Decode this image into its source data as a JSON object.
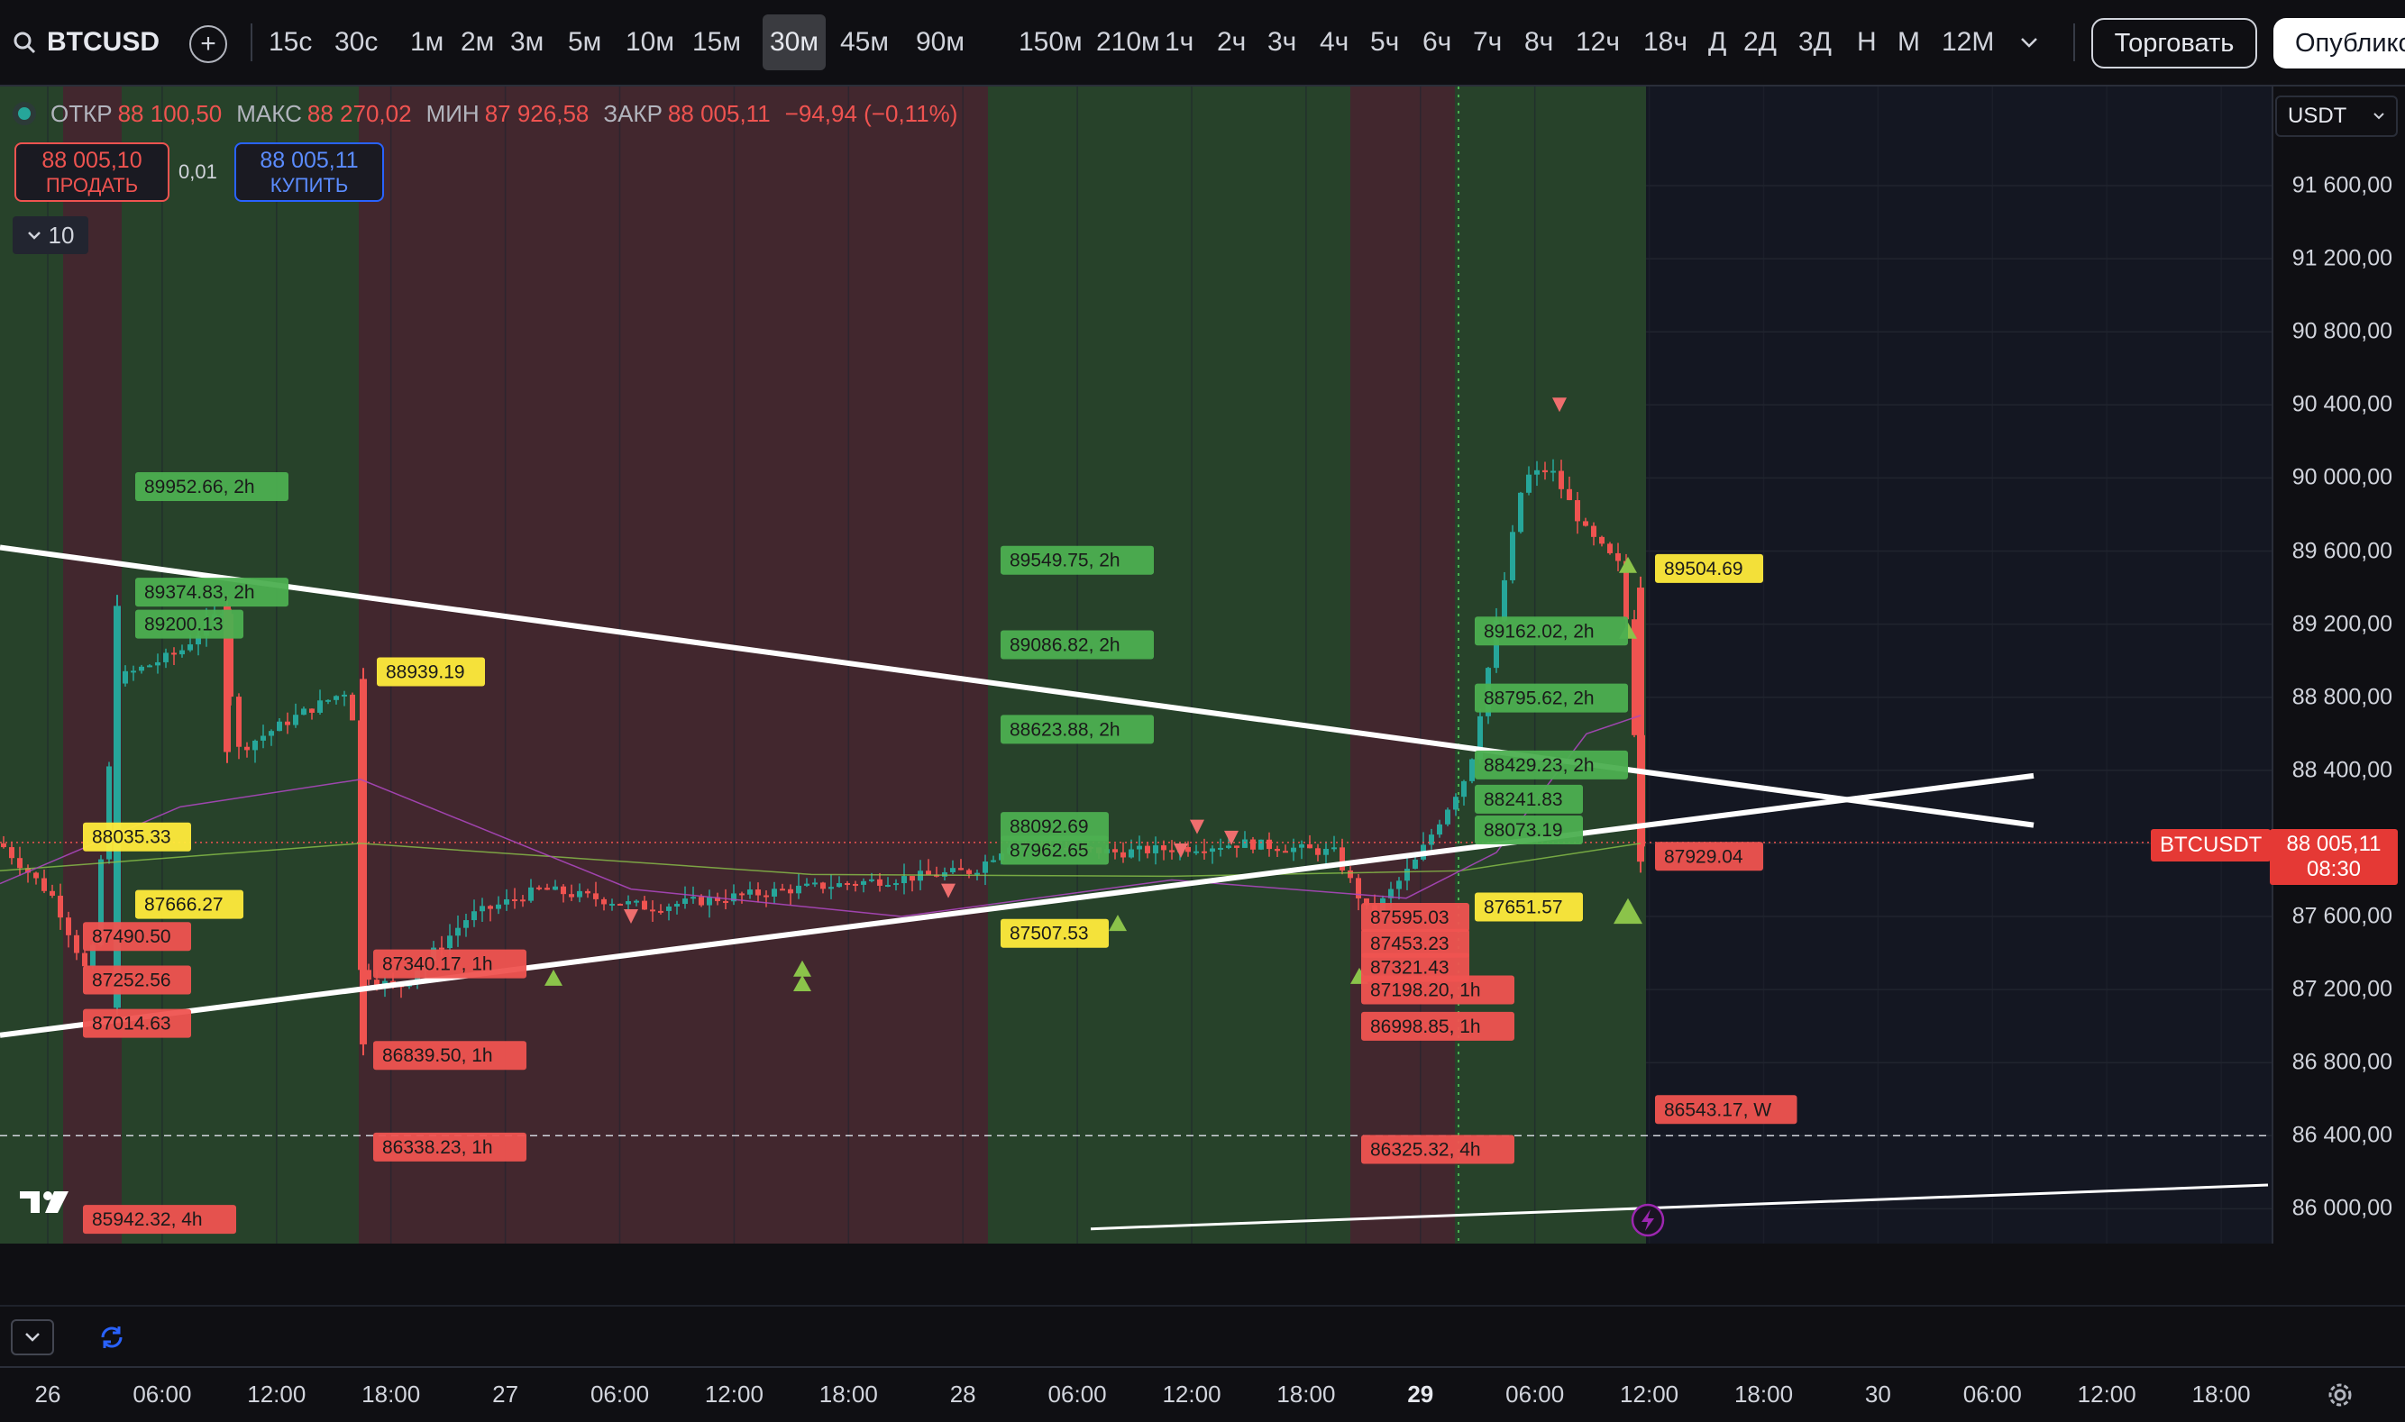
{
  "toolbar": {
    "symbol": "BTCUSD",
    "intervals": [
      "15с",
      "30с",
      "1м",
      "2м",
      "3м",
      "5м",
      "10м",
      "15м",
      "30м",
      "45м",
      "90м",
      "150м",
      "210м",
      "1ч",
      "2ч",
      "3ч",
      "4ч",
      "5ч",
      "6ч",
      "7ч",
      "8ч",
      "12ч",
      "18ч",
      "Д",
      "2Д",
      "3Д",
      "Н",
      "М",
      "12М"
    ],
    "active_interval": "30м",
    "trade_label": "Торговать",
    "publish_label": "Опублико"
  },
  "legend": {
    "open_key": "ОТКР",
    "open_value": "88 100,50",
    "high_key": "МАКС",
    "high_value": "88 270,02",
    "low_key": "МИН",
    "low_value": "87 926,58",
    "close_key": "ЗАКР",
    "close_value": "88 005,11",
    "change": "−94,94 (−0,11%)"
  },
  "order": {
    "sell_price": "88 005,10",
    "sell_label": "ПРОДАТЬ",
    "spread": "0,01",
    "buy_price": "88 005,11",
    "buy_label": "КУПИТЬ"
  },
  "indicators_count": "10",
  "currency": "USDT",
  "last_price": {
    "symbol_tag": "BTCUSDT",
    "price": "88 005,11",
    "countdown": "08:30"
  },
  "price_axis": [
    "91 600,00",
    "91 200,00",
    "90 800,00",
    "90 400,00",
    "90 000,00",
    "89 600,00",
    "89 200,00",
    "88 800,00",
    "88 400,00",
    "88 000,00",
    "87 600,00",
    "87 200,00",
    "86 800,00",
    "86 400,00",
    "86 000,00"
  ],
  "time_axis": [
    {
      "label": "26",
      "bold": false
    },
    {
      "label": "06:00",
      "bold": false
    },
    {
      "label": "12:00",
      "bold": false
    },
    {
      "label": "18:00",
      "bold": false
    },
    {
      "label": "27",
      "bold": false
    },
    {
      "label": "06:00",
      "bold": false
    },
    {
      "label": "12:00",
      "bold": false
    },
    {
      "label": "18:00",
      "bold": false
    },
    {
      "label": "28",
      "bold": false
    },
    {
      "label": "06:00",
      "bold": false
    },
    {
      "label": "12:00",
      "bold": false
    },
    {
      "label": "18:00",
      "bold": false
    },
    {
      "label": "29",
      "bold": true
    },
    {
      "label": "06:00",
      "bold": false
    },
    {
      "label": "12:00",
      "bold": false
    },
    {
      "label": "18:00",
      "bold": false
    },
    {
      "label": "30",
      "bold": false
    },
    {
      "label": "06:00",
      "bold": false
    },
    {
      "label": "12:00",
      "bold": false
    },
    {
      "label": "18:00",
      "bold": false
    }
  ],
  "level_labels": [
    {
      "text": "89952.66, 2h",
      "color": "green"
    },
    {
      "text": "89374.83, 2h",
      "color": "green"
    },
    {
      "text": "89200.13",
      "color": "green"
    },
    {
      "text": "88939.19",
      "color": "yellow"
    },
    {
      "text": "88035.33",
      "color": "yellow"
    },
    {
      "text": "87666.27",
      "color": "yellow"
    },
    {
      "text": "87490.50",
      "color": "red"
    },
    {
      "text": "87252.56",
      "color": "red"
    },
    {
      "text": "87014.63",
      "color": "red"
    },
    {
      "text": "85942.32, 4h",
      "color": "red"
    },
    {
      "text": "87340.17, 1h",
      "color": "red"
    },
    {
      "text": "86839.50, 1h",
      "color": "red"
    },
    {
      "text": "86338.23, 1h",
      "color": "red"
    },
    {
      "text": "89549.75, 2h",
      "color": "green"
    },
    {
      "text": "89086.82, 2h",
      "color": "green"
    },
    {
      "text": "88623.88, 2h",
      "color": "green"
    },
    {
      "text": "88092.69",
      "color": "green"
    },
    {
      "text": "87962.65",
      "color": "green"
    },
    {
      "text": "87507.53",
      "color": "yellow"
    },
    {
      "text": "87595.03",
      "color": "red"
    },
    {
      "text": "87453.23",
      "color": "red"
    },
    {
      "text": "87321.43",
      "color": "red"
    },
    {
      "text": "87198.20, 1h",
      "color": "red"
    },
    {
      "text": "86998.85, 1h",
      "color": "red"
    },
    {
      "text": "86325.32, 4h",
      "color": "red"
    },
    {
      "text": "89162.02, 2h",
      "color": "green"
    },
    {
      "text": "88795.62, 2h",
      "color": "green"
    },
    {
      "text": "88429.23, 2h",
      "color": "green"
    },
    {
      "text": "88241.83",
      "color": "green"
    },
    {
      "text": "88073.19",
      "color": "green"
    },
    {
      "text": "87651.57",
      "color": "yellow"
    },
    {
      "text": "89504.69",
      "color": "yellow"
    },
    {
      "text": "87929.04",
      "color": "red"
    },
    {
      "text": "86543.17, W",
      "color": "red"
    }
  ],
  "colors": {
    "bull": "#26a69a",
    "bear": "#ef5350",
    "bg": "#141722",
    "zone_green": "#2a4a2c",
    "zone_red": "#4a2a30",
    "label_green": "#4caf50",
    "label_red": "#ef5350",
    "label_yellow": "#ffeb3b"
  }
}
